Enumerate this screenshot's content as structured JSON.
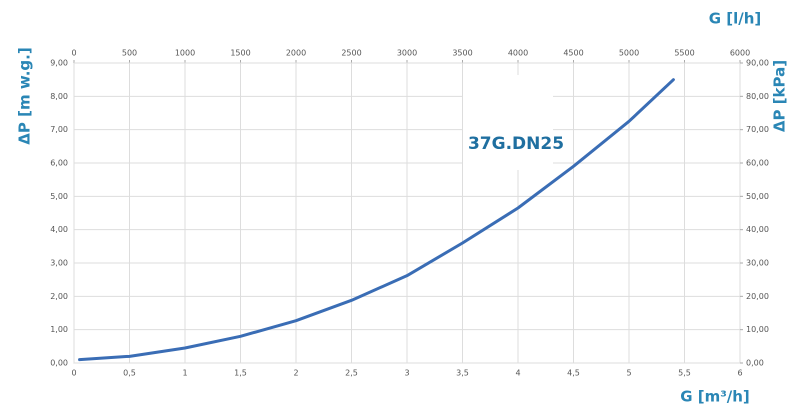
{
  "chart_data": {
    "type": "line",
    "annotation": "37G.DN25",
    "xlabel": "G [m³/h]",
    "x2label": "G [l/h]",
    "ylabel": "ΔP [m w.g.]",
    "y2label": "ΔP [kPa]",
    "x": [
      0.05,
      0.5,
      1,
      1.5,
      2,
      2.5,
      3,
      3.5,
      4,
      4.5,
      5,
      5.4
    ],
    "values": [
      0.1,
      0.2,
      0.45,
      0.8,
      1.27,
      1.88,
      2.62,
      3.6,
      4.65,
      5.9,
      7.25,
      8.5
    ],
    "color": "#3a6db5",
    "xlim": [
      0,
      6
    ],
    "xticks": [
      0,
      {
        "value": 0.5,
        "label": "0,5"
      },
      1,
      {
        "value": 1.5,
        "label": "1,5"
      },
      2,
      {
        "value": 2.5,
        "label": "2,5"
      },
      3,
      {
        "value": 3.5,
        "label": "3,5"
      },
      4,
      {
        "value": 4.5,
        "label": "4,5"
      },
      5,
      {
        "value": 5.5,
        "label": "5,5"
      },
      6
    ],
    "x2lim": [
      0,
      6000
    ],
    "x2ticks": [
      0,
      500,
      1000,
      1500,
      2000,
      2500,
      3000,
      3500,
      4000,
      4500,
      5000,
      5500,
      6000
    ],
    "ylim": [
      0,
      9
    ],
    "yticks": [
      {
        "value": 0,
        "label": "0,00"
      },
      {
        "value": 1,
        "label": "1,00"
      },
      {
        "value": 2,
        "label": "2,00"
      },
      {
        "value": 3,
        "label": "3,00"
      },
      {
        "value": 4,
        "label": "4,00"
      },
      {
        "value": 5,
        "label": "5,00"
      },
      {
        "value": 6,
        "label": "6,00"
      },
      {
        "value": 7,
        "label": "7,00"
      },
      {
        "value": 8,
        "label": "8,00"
      },
      {
        "value": 9,
        "label": "9,00"
      }
    ],
    "y2lim": [
      0,
      90
    ],
    "y2ticks": [
      {
        "value": 0,
        "label": "0,00"
      },
      {
        "value": 10,
        "label": "10,00"
      },
      {
        "value": 20,
        "label": "20,00"
      },
      {
        "value": 30,
        "label": "30,00"
      },
      {
        "value": 40,
        "label": "40,00"
      },
      {
        "value": 50,
        "label": "50,00"
      },
      {
        "value": 60,
        "label": "60,00"
      },
      {
        "value": 70,
        "label": "70,00"
      },
      {
        "value": 80,
        "label": "80,00"
      },
      {
        "value": 90,
        "label": "90,00"
      }
    ],
    "grid": true
  }
}
